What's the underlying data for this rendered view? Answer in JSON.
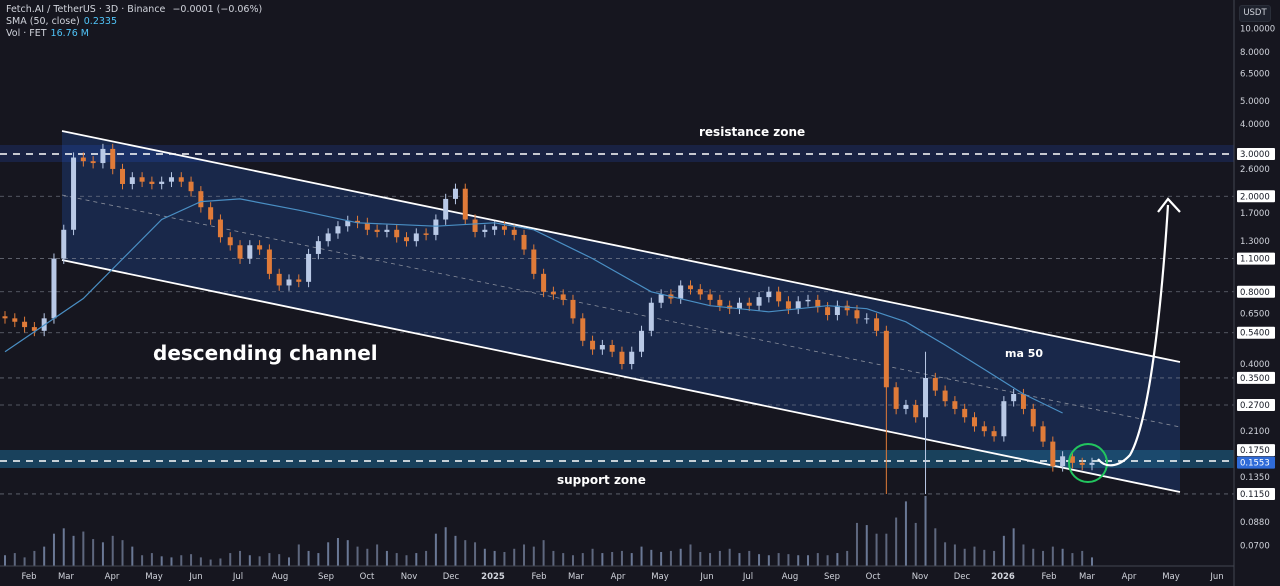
{
  "legend": {
    "symbol": "Fetch.AI / TetherUS · 3D · Binance",
    "change": "−0.0001 (−0.06%)",
    "sma_label": "SMA (50, close)",
    "sma_value": "0.2335",
    "vol_label": "Vol · FET",
    "vol_value": "16.76 M"
  },
  "currency_button": "USDT",
  "annotations": {
    "resistance": "resistance zone",
    "support": "support zone",
    "channel": "descending channel",
    "ma": "ma 50"
  },
  "colors": {
    "background": "#16161f",
    "bull": "#b9c9e6",
    "bear": "#e07b39",
    "ma": "#4a8fc4",
    "channel_fill": "#1a2b52",
    "support_zone": "#1d5f86",
    "current_price": "#2f6bd8",
    "highlight_circle": "#22c55e"
  },
  "chart_data": {
    "type": "candlestick",
    "pair": "FET/USDT",
    "timeframe": "3D",
    "y_scale": "log",
    "ylim": [
      0.065,
      10.5
    ],
    "x_range": [
      "2024-01",
      "2026-06"
    ],
    "price_ticks": [
      "10.0000",
      "8.0000",
      "6.5000",
      "5.0000",
      "4.0000",
      "2.6000",
      "1.7000",
      "1.3000",
      "0.6500",
      "0.4000",
      "0.2100",
      "0.1350",
      "0.0880",
      "0.0700"
    ],
    "marked_levels": [
      "3.0000",
      "2.0000",
      "1.1000",
      "0.8000",
      "0.5400",
      "0.3500",
      "0.2700",
      "0.1750",
      "0.1150"
    ],
    "current_price": "0.1553",
    "time_ticks": [
      "Feb",
      "Mar",
      "Apr",
      "May",
      "Jun",
      "Jul",
      "Aug",
      "Sep",
      "Oct",
      "Nov",
      "Dec",
      "2025",
      "Feb",
      "Mar",
      "Apr",
      "May",
      "Jun",
      "Jul",
      "Aug",
      "Sep",
      "Oct",
      "Nov",
      "Dec",
      "2026",
      "Feb",
      "Mar",
      "Apr",
      "May",
      "Jun"
    ],
    "closes": [
      0.62,
      0.6,
      0.57,
      0.55,
      0.62,
      1.1,
      1.45,
      2.9,
      2.8,
      2.75,
      3.15,
      2.6,
      2.25,
      2.4,
      2.3,
      2.25,
      2.3,
      2.4,
      2.3,
      2.1,
      1.8,
      1.6,
      1.35,
      1.25,
      1.1,
      1.25,
      1.2,
      0.95,
      0.85,
      0.9,
      0.88,
      1.15,
      1.3,
      1.4,
      1.5,
      1.58,
      1.55,
      1.45,
      1.42,
      1.45,
      1.35,
      1.3,
      1.4,
      1.38,
      1.6,
      1.95,
      2.15,
      1.6,
      1.42,
      1.45,
      1.5,
      1.45,
      1.38,
      1.2,
      0.95,
      0.8,
      0.78,
      0.74,
      0.62,
      0.5,
      0.46,
      0.48,
      0.45,
      0.4,
      0.45,
      0.55,
      0.72,
      0.78,
      0.75,
      0.85,
      0.82,
      0.78,
      0.74,
      0.7,
      0.68,
      0.72,
      0.7,
      0.76,
      0.8,
      0.73,
      0.68,
      0.73,
      0.74,
      0.69,
      0.64,
      0.7,
      0.67,
      0.62,
      0.62,
      0.55,
      0.32,
      0.26,
      0.27,
      0.24,
      0.35,
      0.31,
      0.28,
      0.26,
      0.24,
      0.22,
      0.21,
      0.2,
      0.28,
      0.3,
      0.26,
      0.22,
      0.19,
      0.15,
      0.165,
      0.155,
      0.152,
      0.155
    ],
    "long_wicks": [
      {
        "index": 90,
        "low": 0.115
      },
      {
        "index": 94,
        "high": 0.45,
        "low": 0.115
      }
    ],
    "sma50": [
      [
        0,
        0.45
      ],
      [
        8,
        0.75
      ],
      [
        16,
        1.6
      ],
      [
        20,
        1.9
      ],
      [
        24,
        1.95
      ],
      [
        30,
        1.75
      ],
      [
        36,
        1.55
      ],
      [
        44,
        1.5
      ],
      [
        50,
        1.55
      ],
      [
        54,
        1.45
      ],
      [
        60,
        1.1
      ],
      [
        66,
        0.8
      ],
      [
        72,
        0.7
      ],
      [
        78,
        0.66
      ],
      [
        84,
        0.7
      ],
      [
        88,
        0.68
      ],
      [
        92,
        0.6
      ],
      [
        96,
        0.48
      ],
      [
        100,
        0.38
      ],
      [
        104,
        0.3
      ],
      [
        108,
        0.25
      ]
    ],
    "volume_relative": [
      10,
      12,
      8,
      14,
      18,
      30,
      35,
      28,
      32,
      25,
      22,
      28,
      24,
      18,
      10,
      12,
      9,
      8,
      10,
      11,
      8,
      6,
      7,
      12,
      14,
      10,
      9,
      12,
      11,
      8,
      20,
      14,
      12,
      22,
      26,
      24,
      18,
      16,
      20,
      14,
      12,
      10,
      12,
      14,
      30,
      36,
      28,
      24,
      22,
      16,
      14,
      13,
      16,
      20,
      18,
      24,
      14,
      12,
      10,
      12,
      16,
      12,
      13,
      14,
      12,
      18,
      15,
      13,
      14,
      16,
      20,
      13,
      12,
      14,
      16,
      12,
      14,
      11,
      10,
      12,
      11,
      10,
      10,
      12,
      10,
      12,
      14,
      40,
      38,
      30,
      30,
      45,
      60,
      40,
      65,
      35,
      22,
      20,
      16,
      18,
      15,
      14,
      28,
      35,
      20,
      16,
      14,
      18,
      16,
      12,
      14,
      8
    ]
  }
}
